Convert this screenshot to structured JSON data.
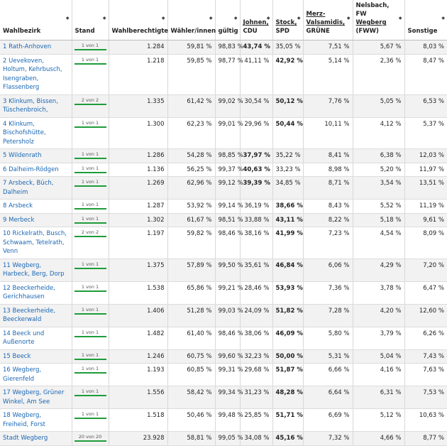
{
  "headers": [
    {
      "key": "bezirk",
      "line1": "",
      "line2": "",
      "line3": "Wahlbezirk"
    },
    {
      "key": "stand",
      "line1": "",
      "line2": "",
      "line3": "Stand"
    },
    {
      "key": "berechtigte",
      "line1": "",
      "line2": "",
      "line3": "Wahlberechtigte"
    },
    {
      "key": "waehler",
      "line1": "",
      "line2": "",
      "line3": "Wähler/innen"
    },
    {
      "key": "gueltig",
      "line1": "",
      "line2": "",
      "line3": "gültig"
    },
    {
      "key": "cdu",
      "line1": "",
      "line2": "Johnen,",
      "line3": "CDU"
    },
    {
      "key": "spd",
      "line1": "",
      "line2": "Stock,",
      "line3": "SPD"
    },
    {
      "key": "gruene",
      "line1": "Merz-",
      "line2": "Valsamidis,",
      "line3": "GRÜNE"
    },
    {
      "key": "fww",
      "line1": "Nelsbach, FW",
      "line2": "Wegberg",
      "line3": "(FWW)"
    },
    {
      "key": "sonstige",
      "line1": "",
      "line2": "",
      "line3": "Sonstige"
    }
  ],
  "rows": [
    {
      "name": "1 Rath-Anhoven",
      "stand": "1 von 1",
      "berechtigte": "1.284",
      "waehler": "59,81 %",
      "gueltig": "98,83 %",
      "cdu": "43,74 %",
      "spd": "35,05 %",
      "gruene": "7,51 %",
      "fww": "5,67 %",
      "sonstige": "8,03 %",
      "bold": "cdu"
    },
    {
      "name": "2 Uevekoven, Holtum, Kehrbusch, Isengraben, Flassenberg",
      "stand": "1 von 1",
      "berechtigte": "1.218",
      "waehler": "59,85 %",
      "gueltig": "98,77 %",
      "cdu": "41,11 %",
      "spd": "42,92 %",
      "gruene": "5,14 %",
      "fww": "2,36 %",
      "sonstige": "8,47 %",
      "bold": "spd"
    },
    {
      "name": "3 Klinkum, Bissen, Tüschenbroich,",
      "stand": "2 von 2",
      "berechtigte": "1.335",
      "waehler": "61,42 %",
      "gueltig": "99,02 %",
      "cdu": "30,54 %",
      "spd": "50,12 %",
      "gruene": "7,76 %",
      "fww": "5,05 %",
      "sonstige": "6,53 %",
      "bold": "spd"
    },
    {
      "name": "4 Klinkum, Bischofshütte, Petersholz",
      "stand": "1 von 1",
      "berechtigte": "1.300",
      "waehler": "62,23 %",
      "gueltig": "99,01 %",
      "cdu": "29,96 %",
      "spd": "50,44 %",
      "gruene": "10,11 %",
      "fww": "4,12 %",
      "sonstige": "5,37 %",
      "bold": "spd"
    },
    {
      "name": "5 Wildenrath",
      "stand": "1 von 1",
      "berechtigte": "1.286",
      "waehler": "54,28 %",
      "gueltig": "98,85 %",
      "cdu": "37,97 %",
      "spd": "35,22 %",
      "gruene": "8,41 %",
      "fww": "6,38 %",
      "sonstige": "12,03 %",
      "bold": "cdu"
    },
    {
      "name": "6 Dalheim-Rödgen",
      "stand": "1 von 1",
      "berechtigte": "1.136",
      "waehler": "56,25 %",
      "gueltig": "99,37 %",
      "cdu": "40,63 %",
      "spd": "33,23 %",
      "gruene": "8,98 %",
      "fww": "5,20 %",
      "sonstige": "11,97 %",
      "bold": "cdu"
    },
    {
      "name": "7 Arsbeck, Büch, Dalheim",
      "stand": "1 von 1",
      "berechtigte": "1.269",
      "waehler": "62,96 %",
      "gueltig": "99,12 %",
      "cdu": "39,39 %",
      "spd": "34,85 %",
      "gruene": "8,71 %",
      "fww": "3,54 %",
      "sonstige": "13,51 %",
      "bold": "cdu"
    },
    {
      "name": "8 Arsbeck",
      "stand": "1 von 1",
      "berechtigte": "1.287",
      "waehler": "53,92 %",
      "gueltig": "99,14 %",
      "cdu": "36,19 %",
      "spd": "38,66 %",
      "gruene": "8,43 %",
      "fww": "5,52 %",
      "sonstige": "11,19 %",
      "bold": "spd"
    },
    {
      "name": "9 Merbeck",
      "stand": "1 von 1",
      "berechtigte": "1.302",
      "waehler": "61,67 %",
      "gueltig": "98,51 %",
      "cdu": "33,88 %",
      "spd": "43,11 %",
      "gruene": "8,22 %",
      "fww": "5,18 %",
      "sonstige": "9,61 %",
      "bold": "spd"
    },
    {
      "name": "10 Rickelrath, Busch, Schwaam, Tetelrath, Venn",
      "stand": "2 von 2",
      "berechtigte": "1.197",
      "waehler": "59,82 %",
      "gueltig": "98,46 %",
      "cdu": "38,16 %",
      "spd": "41,99 %",
      "gruene": "7,23 %",
      "fww": "4,54 %",
      "sonstige": "8,09 %",
      "bold": "spd"
    },
    {
      "name": "11 Wegberg, Harbeck, Berg, Dorp",
      "stand": "1 von 1",
      "berechtigte": "1.375",
      "waehler": "57,89 %",
      "gueltig": "99,50 %",
      "cdu": "35,61 %",
      "spd": "46,84 %",
      "gruene": "6,06 %",
      "fww": "4,29 %",
      "sonstige": "7,20 %",
      "bold": "spd"
    },
    {
      "name": "12 Beeckerheide, Gerichhausen",
      "stand": "1 von 1",
      "berechtigte": "1.538",
      "waehler": "65,86 %",
      "gueltig": "99,21 %",
      "cdu": "28,46 %",
      "spd": "53,93 %",
      "gruene": "7,36 %",
      "fww": "3,78 %",
      "sonstige": "6,47 %",
      "bold": "spd"
    },
    {
      "name": "13 Beeckerheide, Beeckerwald",
      "stand": "1 von 1",
      "berechtigte": "1.406",
      "waehler": "51,28 %",
      "gueltig": "99,03 %",
      "cdu": "24,09 %",
      "spd": "51,82 %",
      "gruene": "7,28 %",
      "fww": "4,20 %",
      "sonstige": "12,60 %",
      "bold": "spd"
    },
    {
      "name": "14 Beeck und Außenorte",
      "stand": "1 von 1",
      "berechtigte": "1.482",
      "waehler": "61,40 %",
      "gueltig": "98,46 %",
      "cdu": "38,06 %",
      "spd": "46,09 %",
      "gruene": "5,80 %",
      "fww": "3,79 %",
      "sonstige": "6,26 %",
      "bold": "spd"
    },
    {
      "name": "15 Beeck",
      "stand": "1 von 1",
      "berechtigte": "1.246",
      "waehler": "60,75 %",
      "gueltig": "99,60 %",
      "cdu": "32,23 %",
      "spd": "50,00 %",
      "gruene": "5,31 %",
      "fww": "5,04 %",
      "sonstige": "7,43 %",
      "bold": "spd"
    },
    {
      "name": "16 Wegberg, Gierenfeld",
      "stand": "1 von 1",
      "berechtigte": "1.193",
      "waehler": "60,85 %",
      "gueltig": "99,31 %",
      "cdu": "29,68 %",
      "spd": "51,87 %",
      "gruene": "6,66 %",
      "fww": "4,16 %",
      "sonstige": "7,63 %",
      "bold": "spd"
    },
    {
      "name": "17 Wegberg, Grüner Winkel, Am See",
      "stand": "1 von 1",
      "berechtigte": "1.556",
      "waehler": "58,42 %",
      "gueltig": "99,34 %",
      "cdu": "31,23 %",
      "spd": "48,28 %",
      "gruene": "6,64 %",
      "fww": "6,31 %",
      "sonstige": "7,53 %",
      "bold": "spd"
    },
    {
      "name": "18 Wegberg, Freiheid, Forst",
      "stand": "1 von 1",
      "berechtigte": "1.518",
      "waehler": "50,46 %",
      "gueltig": "99,48 %",
      "cdu": "25,85 %",
      "spd": "51,71 %",
      "gruene": "6,69 %",
      "fww": "5,12 %",
      "sonstige": "10,63 %",
      "bold": "spd"
    },
    {
      "name": "Stadt Wegberg",
      "stand": "20 von 20",
      "berechtigte": "23.928",
      "waehler": "58,81 %",
      "gueltig": "99,05 %",
      "cdu": "34,08 %",
      "spd": "45,16 %",
      "gruene": "7,32 %",
      "fww": "4,66 %",
      "sonstige": "8,77 %",
      "bold": "spd"
    }
  ],
  "progress": [
    1,
    1,
    1,
    1,
    1,
    1,
    1,
    1,
    1,
    1,
    1,
    1,
    1,
    1,
    1,
    1,
    1,
    1,
    1
  ],
  "colors": {
    "link": "#1a67b4",
    "progress": "#1e9c3a",
    "stripe": "#f2f2f2"
  },
  "icons": {
    "sort": "sort-diamond-icon"
  }
}
